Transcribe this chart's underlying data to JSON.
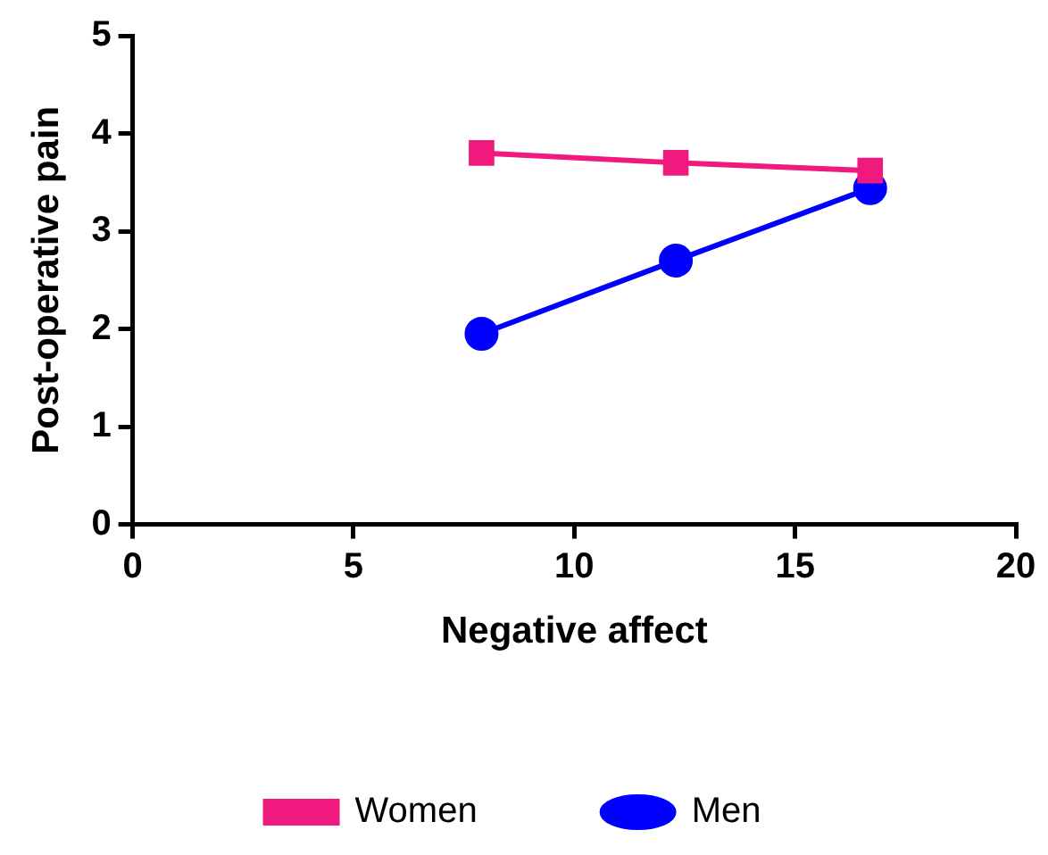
{
  "chart_data": {
    "type": "line",
    "xlabel": "Negative affect",
    "ylabel": "Post-operative pain",
    "xlim": [
      0,
      20
    ],
    "xticks": [
      0,
      5,
      10,
      15,
      20
    ],
    "ylim": [
      0,
      5
    ],
    "yticks": [
      0,
      1,
      2,
      3,
      4,
      5
    ],
    "grid": false,
    "legend": "bottom",
    "line_style": "solid",
    "series": [
      {
        "name": "Women",
        "color": "#f0197d",
        "marker": "square",
        "x": [
          7.9,
          12.3,
          16.7
        ],
        "values": [
          3.8,
          3.7,
          3.62
        ]
      },
      {
        "name": "Men",
        "color": "#0000ff",
        "marker": "circle",
        "x": [
          7.9,
          12.3,
          16.7
        ],
        "values": [
          1.95,
          2.7,
          3.44
        ]
      }
    ]
  }
}
